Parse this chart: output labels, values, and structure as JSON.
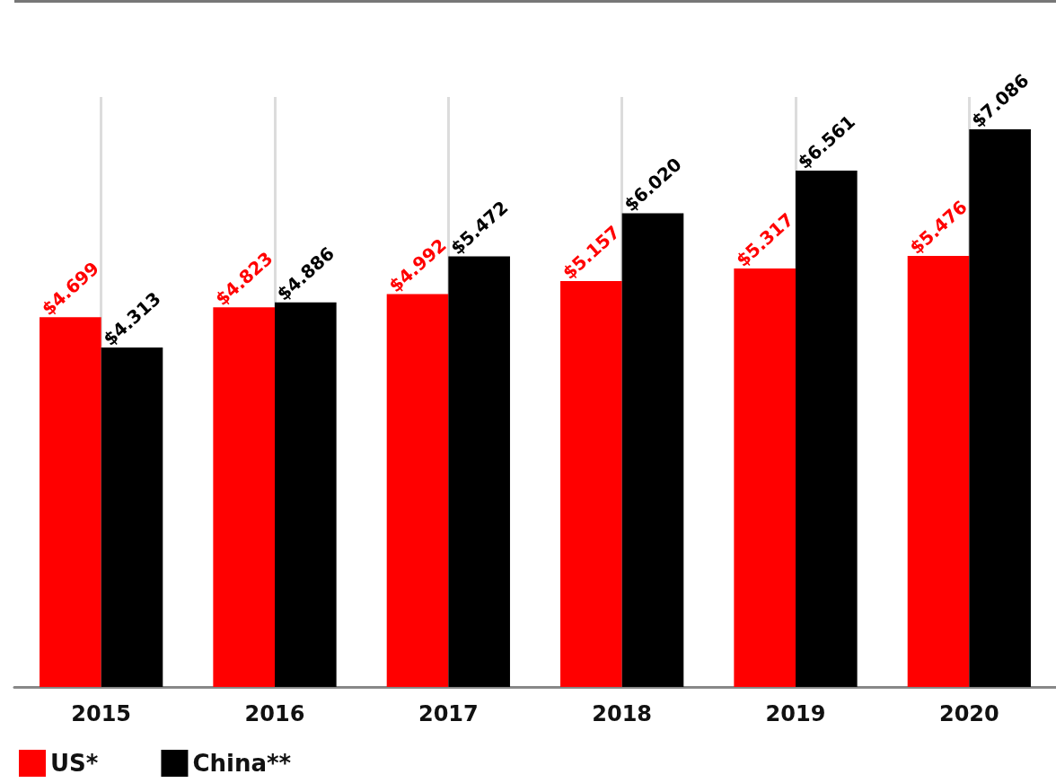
{
  "chart_data": {
    "type": "bar",
    "categories": [
      "2015",
      "2016",
      "2017",
      "2018",
      "2019",
      "2020"
    ],
    "series": [
      {
        "name": "US*",
        "color": "#ff0000",
        "values": [
          4.699,
          4.823,
          4.992,
          5.157,
          5.317,
          5.476
        ],
        "value_labels": [
          "$4.699",
          "$4.823",
          "$4.992",
          "$5.157",
          "$5.317",
          "$5.476"
        ]
      },
      {
        "name": "China**",
        "color": "#000000",
        "values": [
          4.313,
          4.886,
          5.472,
          6.02,
          6.561,
          7.086
        ],
        "value_labels": [
          "$4.313",
          "$4.886",
          "$5.472",
          "$6.020",
          "$6.561",
          "$7.086"
        ]
      }
    ],
    "tick_labels": "x",
    "grid": "x",
    "legend": "bottom left"
  }
}
